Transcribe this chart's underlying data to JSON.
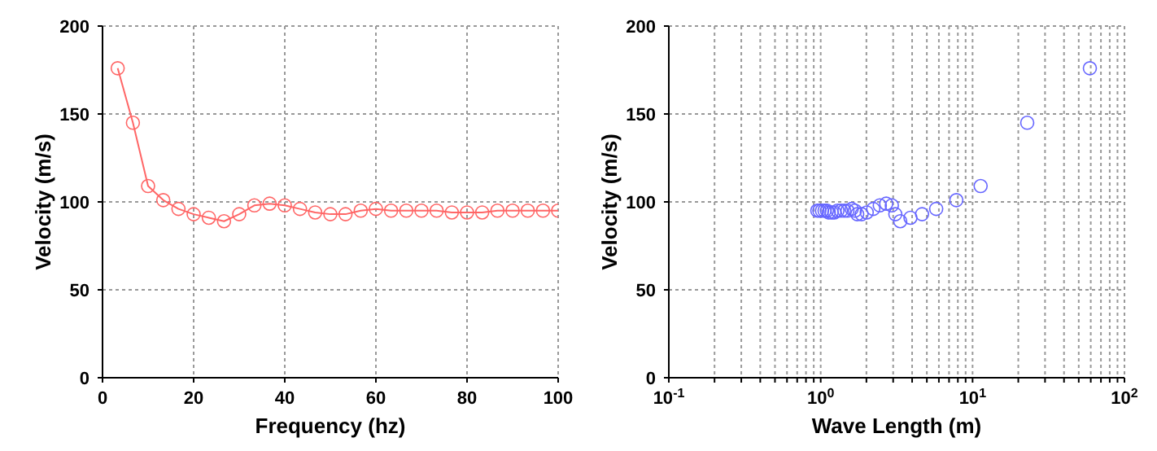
{
  "chart_data": [
    {
      "type": "line",
      "xlabel": "Frequency (hz)",
      "ylabel": "Velocity (m/s)",
      "xlim": [
        0,
        100
      ],
      "ylim": [
        0,
        200
      ],
      "xticks": [
        0,
        20,
        40,
        60,
        80,
        100
      ],
      "yticks": [
        0,
        50,
        100,
        150,
        200
      ],
      "grid": true,
      "marker": "circle",
      "line_style": "solid",
      "series": [
        {
          "color": "#ff6666",
          "x": [
            3.33,
            6.67,
            10,
            13.33,
            16.67,
            20,
            23.33,
            26.67,
            30,
            33.33,
            36.67,
            40,
            43.33,
            46.67,
            50,
            53.33,
            56.67,
            60,
            63.33,
            66.67,
            70,
            73.33,
            76.67,
            80,
            83.33,
            86.67,
            90,
            93.33,
            96.67,
            100
          ],
          "values": [
            176,
            145,
            109,
            101,
            96,
            93,
            91,
            89,
            93,
            98,
            99,
            98,
            96,
            94,
            93,
            93,
            95,
            96,
            95,
            95,
            95,
            95,
            94,
            94,
            94,
            95,
            95,
            95,
            95,
            95
          ]
        }
      ]
    },
    {
      "type": "scatter",
      "xlabel": "Wave Length (m)",
      "ylabel": "Velocity (m/s)",
      "log": "x",
      "xlim": [
        0.1,
        100
      ],
      "ylim": [
        0,
        200
      ],
      "xticks": [
        {
          "value": 0.1,
          "label": "10$^{-1}$"
        },
        {
          "value": 0.2,
          "label": null
        },
        {
          "value": 0.3,
          "label": null
        },
        {
          "value": 0.4,
          "label": null
        },
        {
          "value": 0.5,
          "label": null
        },
        {
          "value": 0.6,
          "label": null
        },
        {
          "value": 0.7,
          "label": null
        },
        {
          "value": 0.8,
          "label": null
        },
        {
          "value": 0.9,
          "label": null
        },
        {
          "value": 1,
          "label": "10$^{0}$"
        },
        {
          "value": 2,
          "label": null
        },
        {
          "value": 3,
          "label": null
        },
        {
          "value": 4,
          "label": null
        },
        {
          "value": 5,
          "label": null
        },
        {
          "value": 6,
          "label": null
        },
        {
          "value": 7,
          "label": null
        },
        {
          "value": 8,
          "label": null
        },
        {
          "value": 9,
          "label": null
        },
        {
          "value": 10,
          "label": "10$^{1}$"
        },
        {
          "value": 20,
          "label": null
        },
        {
          "value": 30,
          "label": null
        },
        {
          "value": 40,
          "label": null
        },
        {
          "value": 50,
          "label": null
        },
        {
          "value": 60,
          "label": null
        },
        {
          "value": 70,
          "label": null
        },
        {
          "value": 80,
          "label": null
        },
        {
          "value": 90,
          "label": null
        },
        {
          "value": 100,
          "label": "10$^{2}$"
        }
      ],
      "yticks": [
        0,
        50,
        100,
        150,
        200
      ],
      "grid": true,
      "marker": "circle",
      "series": [
        {
          "color": "#6666ff",
          "x": [
            59.2,
            22.9,
            11.3,
            7.82,
            5.76,
            4.65,
            3.9,
            3.34,
            3.1,
            2.94,
            2.7,
            2.45,
            2.22,
            2.01,
            1.86,
            1.74,
            1.68,
            1.6,
            1.5,
            1.43,
            1.36,
            1.29,
            1.23,
            1.18,
            1.13,
            1.1,
            1.06,
            1.02,
            0.98,
            0.95
          ],
          "values": [
            176,
            145,
            109,
            101,
            96,
            93,
            91,
            89,
            93,
            98,
            99,
            98,
            96,
            94,
            93,
            93,
            95,
            96,
            95,
            95,
            95,
            95,
            94,
            94,
            94,
            95,
            95,
            95,
            95,
            95
          ]
        }
      ]
    }
  ]
}
